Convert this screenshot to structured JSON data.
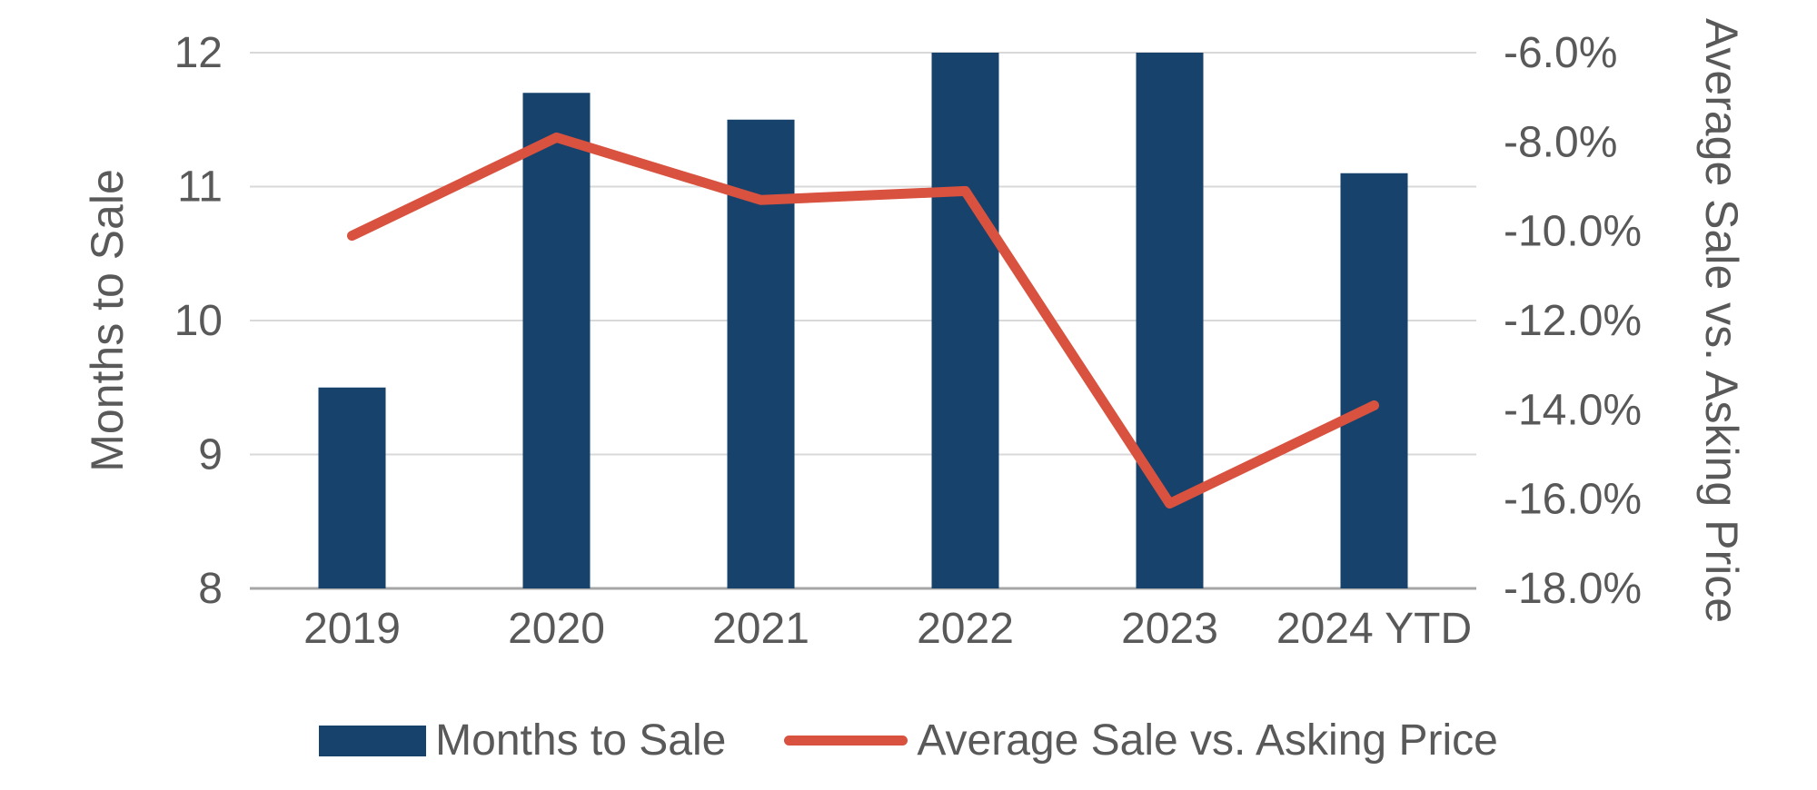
{
  "chart_data": {
    "type": "combo",
    "categories": [
      "2019",
      "2020",
      "2021",
      "2022",
      "2023",
      "2024 YTD"
    ],
    "series": [
      {
        "name": "Months to Sale",
        "type": "bar",
        "axis": "left",
        "values": [
          9.5,
          11.7,
          11.5,
          12.0,
          12.0,
          11.1
        ],
        "color": "#17426B"
      },
      {
        "name": "Average Sale vs. Asking Price",
        "type": "line",
        "axis": "right",
        "values": [
          -10.1,
          -7.9,
          -9.3,
          -9.1,
          -16.1,
          -13.9
        ],
        "color": "#D8523F"
      }
    ],
    "title": "",
    "xlabel": "",
    "ylabel_left": "Months to Sale",
    "ylabel_right": "Average Sale vs. Asking Price",
    "y_left": {
      "min": 8,
      "max": 12,
      "ticks": [
        {
          "value": 12,
          "label": "12"
        },
        {
          "value": 11,
          "label": "11"
        },
        {
          "value": 10,
          "label": "10"
        },
        {
          "value": 9,
          "label": "9"
        },
        {
          "value": 8,
          "label": "8"
        }
      ]
    },
    "y_right": {
      "min": -18,
      "max": -6,
      "ticks": [
        {
          "value": -6,
          "label": "-6.0%"
        },
        {
          "value": -8,
          "label": "-8.0%"
        },
        {
          "value": -10,
          "label": "-10.0%"
        },
        {
          "value": -12,
          "label": "-12.0%"
        },
        {
          "value": -14,
          "label": "-14.0%"
        },
        {
          "value": -16,
          "label": "-16.0%"
        },
        {
          "value": -18,
          "label": "-18.0%"
        }
      ]
    },
    "grid": true,
    "legend_position": "bottom",
    "colors": {
      "grid": "#D9D9D9",
      "axis_line": "#A6A6A6",
      "text": "#595959",
      "background": "#FFFFFF"
    }
  }
}
